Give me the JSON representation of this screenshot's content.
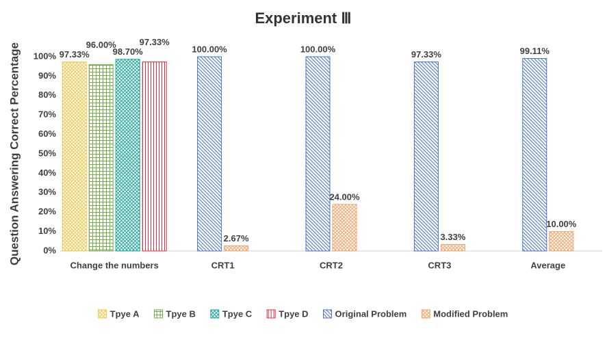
{
  "chart_data": {
    "type": "bar",
    "title": "Experiment Ⅲ",
    "y_label": "Question Answering Correct Percentage",
    "categories": [
      "Change the numbers",
      "CRT1",
      "CRT2",
      "CRT3",
      "Average"
    ],
    "series": [
      {
        "name": "Tpye A",
        "color": "#f2c94c",
        "hatch": "diag-cross",
        "values": [
          97.33,
          null,
          null,
          null,
          null
        ],
        "value_labels": [
          "97.33%",
          null,
          null,
          null,
          null
        ]
      },
      {
        "name": "Tpye B",
        "color": "#70ad47",
        "hatch": "grid",
        "values": [
          96.0,
          null,
          null,
          null,
          null
        ],
        "value_labels": [
          "96.00%",
          null,
          null,
          null,
          null
        ]
      },
      {
        "name": "Tpye C",
        "color": "#1aa89a",
        "hatch": "diag-cross",
        "values": [
          98.7,
          null,
          null,
          null,
          null
        ],
        "value_labels": [
          "98.70%",
          null,
          null,
          null,
          null
        ]
      },
      {
        "name": "Tpye D",
        "color": "#e0303f",
        "hatch": "vertical",
        "values": [
          97.33,
          null,
          null,
          null,
          null
        ],
        "value_labels": [
          "97.33%",
          null,
          null,
          null,
          null
        ]
      },
      {
        "name": "Original Problem",
        "color": "#4472c4",
        "hatch": "diag",
        "values": [
          null,
          100.0,
          100.0,
          97.33,
          99.11
        ],
        "value_labels": [
          null,
          "100.00%",
          "100.00%",
          "97.33%",
          "99.11%"
        ]
      },
      {
        "name": "Modified Problem",
        "color": "#f4a46a",
        "hatch": "diag-cross",
        "values": [
          null,
          2.67,
          24.0,
          3.33,
          10.0
        ],
        "value_labels": [
          null,
          "2.67%",
          "24.00%",
          "3.33%",
          "10.00%"
        ]
      }
    ],
    "ylim": [
      0,
      100
    ],
    "yticks": [
      {
        "value": 0,
        "label": "0%"
      },
      {
        "value": 10,
        "label": "10%"
      },
      {
        "value": 20,
        "label": "20%"
      },
      {
        "value": 30,
        "label": "30%"
      },
      {
        "value": 40,
        "label": "40%"
      },
      {
        "value": 50,
        "label": "50%"
      },
      {
        "value": 60,
        "label": "60%"
      },
      {
        "value": 70,
        "label": "70%"
      },
      {
        "value": 80,
        "label": "80%"
      },
      {
        "value": 90,
        "label": "90%"
      },
      {
        "value": 100,
        "label": "100%"
      }
    ],
    "grid": false,
    "legend": "bottom"
  }
}
